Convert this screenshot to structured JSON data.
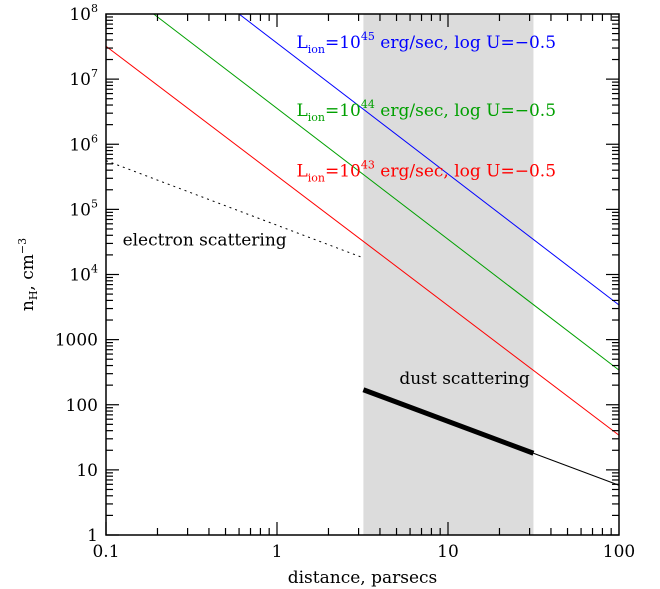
{
  "chart_data": {
    "type": "line",
    "xlabel": "distance, parsecs",
    "ylabel": {
      "main": "n",
      "sub": "H",
      "rest": ", cm",
      "sup": "−3"
    },
    "x_scale": "log",
    "y_scale": "log",
    "xlim": [
      0.1,
      100
    ],
    "ylim": [
      1,
      100000000
    ],
    "x_ticks": [
      {
        "value": 0.1,
        "label": "0.1"
      },
      {
        "value": 1,
        "label": "1"
      },
      {
        "value": 10,
        "label": "10"
      },
      {
        "value": 100,
        "label": "100"
      }
    ],
    "y_ticks": [
      {
        "value": 1,
        "base": "1",
        "exp": ""
      },
      {
        "value": 10,
        "base": "10",
        "exp": ""
      },
      {
        "value": 100,
        "base": "100",
        "exp": ""
      },
      {
        "value": 1000,
        "base": "1000",
        "exp": ""
      },
      {
        "value": 10000,
        "base": "10",
        "exp": "4"
      },
      {
        "value": 100000,
        "base": "10",
        "exp": "5"
      },
      {
        "value": 1000000,
        "base": "10",
        "exp": "6"
      },
      {
        "value": 10000000,
        "base": "10",
        "exp": "7"
      },
      {
        "value": 100000000,
        "base": "10",
        "exp": "8"
      }
    ],
    "shaded_region": {
      "x_from": 3.2,
      "x_to": 31.6,
      "color": "#dcdcdc"
    },
    "series": [
      {
        "color": "#0000ff",
        "width": 1,
        "dash": "",
        "points": [
          [
            0.6,
            100000000
          ],
          [
            100,
            3400
          ]
        ]
      },
      {
        "color": "#00a000",
        "width": 1,
        "dash": "",
        "points": [
          [
            0.19,
            100000000
          ],
          [
            100,
            340
          ]
        ]
      },
      {
        "color": "#ff0000",
        "width": 1,
        "dash": "",
        "points": [
          [
            0.1,
            32000000
          ],
          [
            100,
            34
          ]
        ]
      },
      {
        "color": "#000000",
        "width": 1,
        "dash": "2,4",
        "points": [
          [
            0.1,
            560000
          ],
          [
            3.2,
            18000
          ]
        ]
      },
      {
        "color": "#000000",
        "width": 5,
        "dash": "",
        "points": [
          [
            3.2,
            170
          ],
          [
            31.6,
            18
          ]
        ]
      },
      {
        "color": "#000000",
        "width": 1,
        "dash": "",
        "points": [
          [
            31.6,
            18
          ],
          [
            100,
            5.8
          ]
        ]
      }
    ],
    "annotations": [
      {
        "name": "annotation-lion-45",
        "color": "#0000ff",
        "x": 1.3,
        "y": 30000000,
        "parts": [
          {
            "t": "L",
            "s": ""
          },
          {
            "t": "ion",
            "s": "sub"
          },
          {
            "t": "=10",
            "s": ""
          },
          {
            "t": "45",
            "s": "sup"
          },
          {
            "t": " erg/sec, log U=−0.5",
            "s": ""
          }
        ]
      },
      {
        "name": "annotation-lion-44",
        "color": "#00a000",
        "x": 1.3,
        "y": 2700000,
        "parts": [
          {
            "t": "L",
            "s": ""
          },
          {
            "t": "ion",
            "s": "sub"
          },
          {
            "t": "=10",
            "s": ""
          },
          {
            "t": "44",
            "s": "sup"
          },
          {
            "t": " erg/sec, log U=−0.5",
            "s": ""
          }
        ]
      },
      {
        "name": "annotation-lion-43",
        "color": "#ff0000",
        "x": 1.3,
        "y": 320000,
        "parts": [
          {
            "t": "L",
            "s": ""
          },
          {
            "t": "ion",
            "s": "sub"
          },
          {
            "t": "=10",
            "s": ""
          },
          {
            "t": "43",
            "s": "sup"
          },
          {
            "t": " erg/sec, log U=−0.5",
            "s": ""
          }
        ]
      },
      {
        "name": "annotation-electron-scattering",
        "color": "#000000",
        "x": 0.125,
        "y": 28000,
        "parts": [
          {
            "t": "electron scattering",
            "s": ""
          }
        ]
      },
      {
        "name": "annotation-dust-scattering",
        "color": "#000000",
        "x": 5.2,
        "y": 210,
        "parts": [
          {
            "t": "dust scattering",
            "s": ""
          }
        ]
      }
    ]
  }
}
